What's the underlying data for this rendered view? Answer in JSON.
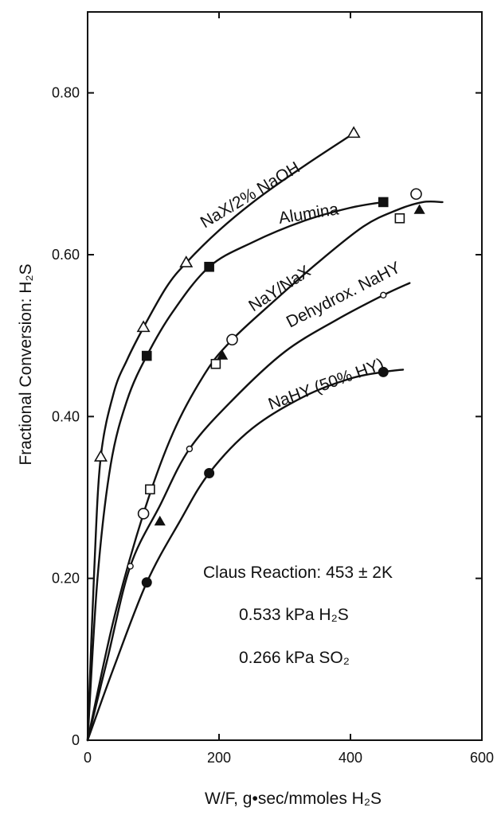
{
  "chart_data": {
    "type": "scatter",
    "xlabel": "W/F, g•sec/mmoles H₂S",
    "ylabel": "Fractional Conversion: H₂S",
    "xlim": [
      0,
      600
    ],
    "ylim": [
      0,
      0.9
    ],
    "x_ticks": [
      {
        "value": 0,
        "label": "0"
      },
      {
        "value": 200,
        "label": "200"
      },
      {
        "value": 400,
        "label": "400"
      },
      {
        "value": 600,
        "label": "600"
      }
    ],
    "y_ticks": [
      {
        "value": 0,
        "label": "0"
      },
      {
        "value": 0.2,
        "label": "0.20"
      },
      {
        "value": 0.4,
        "label": "0.40"
      },
      {
        "value": 0.6,
        "label": "0.60"
      },
      {
        "value": 0.8,
        "label": "0.80"
      }
    ],
    "grid": false,
    "series": [
      {
        "name": "NaX/2% NaOH",
        "marker": "open-triangle",
        "points": [
          [
            20,
            0.35
          ],
          [
            85,
            0.51
          ],
          [
            150,
            0.59
          ],
          [
            405,
            0.75
          ]
        ],
        "curve": [
          [
            0,
            0
          ],
          [
            10,
            0.21
          ],
          [
            20,
            0.35
          ],
          [
            40,
            0.43
          ],
          [
            60,
            0.47
          ],
          [
            85,
            0.51
          ],
          [
            120,
            0.56
          ],
          [
            150,
            0.59
          ],
          [
            200,
            0.63
          ],
          [
            260,
            0.67
          ],
          [
            330,
            0.71
          ],
          [
            405,
            0.75
          ]
        ]
      },
      {
        "name": "Alumina",
        "marker": "filled-square",
        "points": [
          [
            90,
            0.475
          ],
          [
            185,
            0.585
          ],
          [
            450,
            0.665
          ]
        ],
        "curve": [
          [
            0,
            0
          ],
          [
            15,
            0.2
          ],
          [
            35,
            0.34
          ],
          [
            60,
            0.42
          ],
          [
            90,
            0.475
          ],
          [
            130,
            0.53
          ],
          [
            185,
            0.585
          ],
          [
            250,
            0.615
          ],
          [
            330,
            0.642
          ],
          [
            400,
            0.658
          ],
          [
            450,
            0.665
          ]
        ]
      },
      {
        "name": "NaY/NaX",
        "marker": "open-circle",
        "points": [
          [
            85,
            0.28
          ],
          [
            220,
            0.495
          ],
          [
            500,
            0.675
          ]
        ],
        "curve": [
          [
            0,
            0
          ],
          [
            40,
            0.15
          ],
          [
            85,
            0.28
          ],
          [
            130,
            0.38
          ],
          [
            180,
            0.455
          ],
          [
            220,
            0.495
          ],
          [
            280,
            0.54
          ],
          [
            350,
            0.59
          ],
          [
            420,
            0.635
          ],
          [
            470,
            0.655
          ],
          [
            510,
            0.665
          ],
          [
            540,
            0.665
          ]
        ]
      },
      {
        "name": "NaY/NaX",
        "marker": "open-square",
        "points": [
          [
            95,
            0.31
          ],
          [
            195,
            0.465
          ],
          [
            475,
            0.645
          ]
        ]
      },
      {
        "name": "NaY/NaX",
        "marker": "filled-triangle",
        "points": [
          [
            110,
            0.27
          ],
          [
            205,
            0.475
          ],
          [
            505,
            0.655
          ]
        ]
      },
      {
        "name": "Dehydrox. NaHY",
        "marker": "small-open-circle",
        "points": [
          [
            65,
            0.215
          ],
          [
            155,
            0.36
          ],
          [
            450,
            0.55
          ]
        ],
        "curve": [
          [
            0,
            0
          ],
          [
            30,
            0.1
          ],
          [
            65,
            0.215
          ],
          [
            110,
            0.29
          ],
          [
            155,
            0.36
          ],
          [
            220,
            0.42
          ],
          [
            300,
            0.48
          ],
          [
            380,
            0.52
          ],
          [
            450,
            0.55
          ],
          [
            490,
            0.565
          ]
        ]
      },
      {
        "name": "NaHY (50% HY)",
        "marker": "filled-circle",
        "points": [
          [
            90,
            0.195
          ],
          [
            185,
            0.33
          ],
          [
            450,
            0.455
          ]
        ],
        "curve": [
          [
            0,
            0
          ],
          [
            40,
            0.09
          ],
          [
            90,
            0.195
          ],
          [
            140,
            0.27
          ],
          [
            185,
            0.33
          ],
          [
            250,
            0.385
          ],
          [
            330,
            0.425
          ],
          [
            400,
            0.447
          ],
          [
            450,
            0.455
          ],
          [
            480,
            0.458
          ]
        ]
      }
    ],
    "annotations": [
      "Claus Reaction: 453 ± 2K",
      "0.533 kPa H₂S",
      "0.266 kPa SO₂"
    ]
  }
}
